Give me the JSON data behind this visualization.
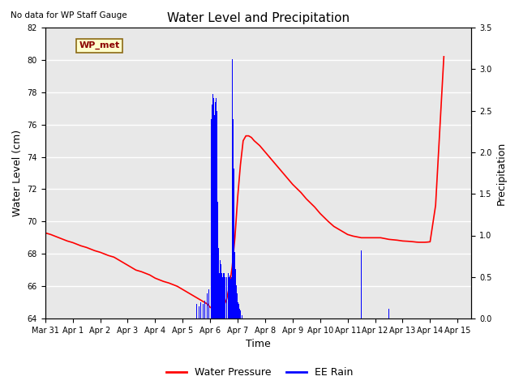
{
  "title": "Water Level and Precipitation",
  "subtitle": "No data for WP Staff Gauge",
  "xlabel": "Time",
  "ylabel_left": "Water Level (cm)",
  "ylabel_right": "Precipitation",
  "legend_label": "WP_met",
  "line_label": "Water Pressure",
  "bar_label": "EE Rain",
  "line_color": "#FF0000",
  "bar_color": "#0000FF",
  "ylim_left": [
    64,
    82
  ],
  "ylim_right": [
    0.0,
    3.5
  ],
  "yticks_left": [
    64,
    66,
    68,
    70,
    72,
    74,
    76,
    78,
    80,
    82
  ],
  "yticks_right": [
    0.0,
    0.5,
    1.0,
    1.5,
    2.0,
    2.5,
    3.0,
    3.5
  ],
  "bg_color": "#E8E8E8",
  "wp_met_box_color": "#FFFFCC",
  "wp_met_text_color": "#8B0000",
  "water_pressure_x": [
    0,
    0.2,
    0.5,
    0.8,
    1.0,
    1.3,
    1.5,
    1.8,
    2.0,
    2.3,
    2.5,
    2.8,
    3.0,
    3.3,
    3.5,
    3.8,
    4.0,
    4.3,
    4.5,
    4.8,
    5.0,
    5.2,
    5.4,
    5.5,
    5.6,
    5.7,
    5.8,
    5.9,
    6.0,
    6.05,
    6.1,
    6.15,
    6.2,
    6.25,
    6.3,
    6.35,
    6.4,
    6.5,
    6.6,
    6.7,
    6.8,
    6.9,
    7.0,
    7.1,
    7.2,
    7.3,
    7.4,
    7.5,
    7.6,
    7.8,
    8.0,
    8.2,
    8.5,
    8.8,
    9.0,
    9.3,
    9.5,
    9.8,
    10.0,
    10.3,
    10.5,
    10.8,
    11.0,
    11.2,
    11.5,
    11.8,
    12.0,
    12.2,
    12.5,
    12.8,
    13.0,
    13.2,
    13.4,
    13.5,
    13.6,
    13.7,
    13.8,
    13.9,
    14.0,
    14.2,
    14.5
  ],
  "water_pressure_y": [
    69.3,
    69.2,
    69.0,
    68.8,
    68.7,
    68.5,
    68.4,
    68.2,
    68.1,
    67.9,
    67.8,
    67.5,
    67.3,
    67.0,
    66.9,
    66.7,
    66.5,
    66.3,
    66.2,
    66.0,
    65.8,
    65.6,
    65.4,
    65.3,
    65.2,
    65.1,
    65.0,
    64.9,
    64.7,
    64.65,
    64.6,
    64.55,
    64.5,
    64.5,
    64.52,
    64.55,
    64.6,
    64.8,
    65.2,
    66.0,
    67.2,
    69.0,
    71.5,
    73.5,
    75.0,
    75.3,
    75.3,
    75.2,
    75.0,
    74.7,
    74.3,
    73.9,
    73.3,
    72.7,
    72.3,
    71.8,
    71.4,
    70.9,
    70.5,
    70.0,
    69.7,
    69.4,
    69.2,
    69.1,
    69.0,
    69.0,
    69.0,
    69.0,
    68.9,
    68.85,
    68.8,
    68.78,
    68.75,
    68.73,
    68.72,
    68.72,
    68.72,
    68.73,
    68.75,
    71.0,
    80.2
  ],
  "rain_x": [
    5.4,
    5.5,
    5.55,
    5.6,
    5.65,
    5.7,
    5.75,
    5.8,
    5.85,
    5.9,
    5.95,
    6.0,
    6.02,
    6.04,
    6.06,
    6.08,
    6.1,
    6.12,
    6.14,
    6.16,
    6.18,
    6.2,
    6.22,
    6.24,
    6.26,
    6.28,
    6.3,
    6.32,
    6.34,
    6.36,
    6.38,
    6.4,
    6.42,
    6.44,
    6.46,
    6.48,
    6.5,
    6.52,
    6.54,
    6.56,
    6.58,
    6.6,
    6.62,
    6.64,
    6.66,
    6.68,
    6.7,
    6.72,
    6.74,
    6.76,
    6.78,
    6.8,
    6.82,
    6.84,
    6.86,
    6.88,
    6.9,
    6.92,
    6.94,
    6.96,
    6.98,
    7.0,
    7.02,
    7.04,
    7.06,
    7.08,
    7.1,
    7.12,
    7.14,
    7.16,
    11.5,
    12.5
  ],
  "rain_y": [
    0.05,
    0.18,
    0.22,
    0.15,
    0.2,
    0.25,
    0.18,
    0.22,
    0.2,
    0.3,
    0.35,
    0.55,
    1.8,
    2.4,
    2.57,
    2.62,
    2.7,
    2.65,
    2.55,
    2.45,
    2.6,
    2.75,
    2.65,
    2.5,
    1.8,
    1.4,
    0.85,
    0.65,
    0.55,
    0.7,
    0.6,
    0.65,
    0.55,
    0.6,
    0.5,
    0.55,
    0.65,
    0.55,
    0.5,
    0.6,
    0.55,
    0.5,
    0.58,
    0.52,
    0.55,
    0.5,
    0.6,
    0.52,
    0.48,
    0.55,
    0.5,
    3.12,
    2.6,
    2.4,
    1.8,
    1.2,
    0.8,
    0.6,
    0.5,
    0.4,
    0.3,
    0.25,
    0.2,
    0.18,
    0.15,
    0.12,
    0.1,
    0.08,
    0.06,
    0.04,
    0.82,
    0.12
  ]
}
